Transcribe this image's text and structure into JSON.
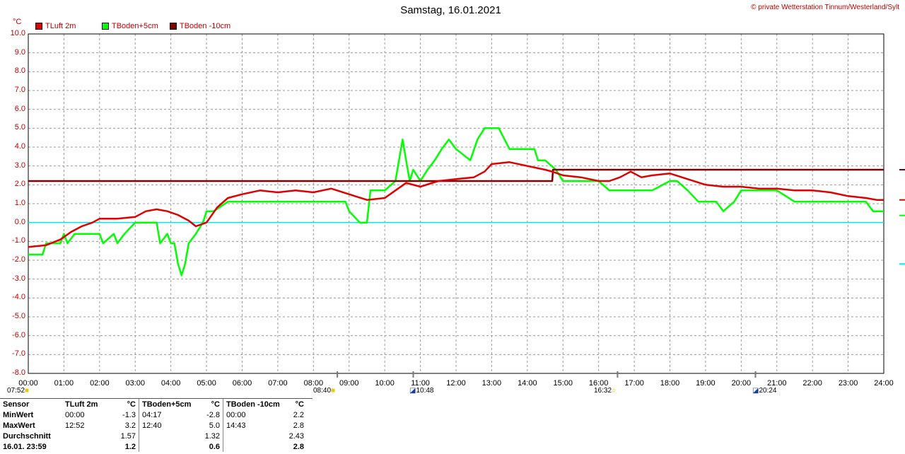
{
  "title": "Samstag, 16.01.2021",
  "copyright": "© private Wetterstation Tinnum/Westerland/Sylt",
  "unit": "°C",
  "legend": [
    {
      "label": "TLuft 2m",
      "color": "#e00000"
    },
    {
      "label": "TBoden+5cm",
      "color": "#00ff00"
    },
    {
      "label": "TBoden -10cm",
      "color": "#800000"
    }
  ],
  "events": [
    {
      "time": "07:52",
      "kind": "sunrise"
    },
    {
      "time": "08:40",
      "kind": "sun"
    },
    {
      "time": "10:48",
      "kind": "moon"
    },
    {
      "time": "16:32",
      "kind": "sunset"
    },
    {
      "time": "20:24",
      "kind": "moon"
    }
  ],
  "chart_data": {
    "type": "line",
    "ylim": [
      -8,
      10
    ],
    "xlim": [
      0,
      24
    ],
    "yticks": [
      "10.0",
      "9.0",
      "8.0",
      "7.0",
      "6.0",
      "5.0",
      "4.0",
      "3.0",
      "2.0",
      "1.0",
      "0.0",
      "-1.0",
      "-2.0",
      "-3.0",
      "-4.0",
      "-5.0",
      "-6.0",
      "-7.0",
      "-8.0"
    ],
    "xticks": [
      "00:00",
      "01:00",
      "02:00",
      "03:00",
      "04:00",
      "05:00",
      "06:00",
      "07:00",
      "08:00",
      "09:00",
      "10:00",
      "11:00",
      "12:00",
      "13:00",
      "14:00",
      "15:00",
      "16:00",
      "17:00",
      "18:00",
      "19:00",
      "20:00",
      "21:00",
      "22:00",
      "23:00",
      "24:00"
    ],
    "grid": true,
    "zero_line_color": "#00e5ee",
    "series": [
      {
        "name": "TLuft 2m",
        "color": "#e00000",
        "x": [
          0,
          0.5,
          0.9,
          1.2,
          1.5,
          1.8,
          2.0,
          2.5,
          3.0,
          3.3,
          3.6,
          3.9,
          4.2,
          4.5,
          4.7,
          5.0,
          5.3,
          5.6,
          6.0,
          6.5,
          7.0,
          7.5,
          8.0,
          8.5,
          9.0,
          9.5,
          10.0,
          10.3,
          10.6,
          11.0,
          11.5,
          12.0,
          12.5,
          12.8,
          13.0,
          13.5,
          14.0,
          14.5,
          14.7,
          15.0,
          15.5,
          16.0,
          16.3,
          16.6,
          16.9,
          17.2,
          17.5,
          18.0,
          18.5,
          19.0,
          19.5,
          20.0,
          20.5,
          21.0,
          21.5,
          22.0,
          22.5,
          23.0,
          23.5,
          23.8,
          24.0
        ],
        "y": [
          -1.3,
          -1.2,
          -0.9,
          -0.5,
          -0.2,
          0.0,
          0.2,
          0.2,
          0.3,
          0.6,
          0.7,
          0.6,
          0.4,
          0.1,
          -0.2,
          0.0,
          0.8,
          1.3,
          1.5,
          1.7,
          1.6,
          1.7,
          1.6,
          1.8,
          1.5,
          1.2,
          1.3,
          1.7,
          2.1,
          1.9,
          2.2,
          2.3,
          2.4,
          2.7,
          3.1,
          3.2,
          3.0,
          2.8,
          2.7,
          2.5,
          2.4,
          2.2,
          2.2,
          2.4,
          2.7,
          2.4,
          2.5,
          2.6,
          2.3,
          2.0,
          1.9,
          1.9,
          1.8,
          1.8,
          1.7,
          1.7,
          1.6,
          1.4,
          1.3,
          1.2,
          1.2
        ]
      },
      {
        "name": "TBoden+5cm",
        "color": "#00ff00",
        "x": [
          0,
          0.4,
          0.5,
          0.9,
          1.0,
          1.1,
          1.3,
          2.0,
          2.1,
          2.4,
          2.5,
          2.7,
          3.0,
          3.6,
          3.7,
          3.9,
          4.0,
          4.1,
          4.2,
          4.3,
          4.4,
          4.5,
          4.7,
          4.9,
          5.0,
          5.2,
          5.6,
          6.0,
          6.3,
          6.8,
          7.5,
          8.0,
          8.5,
          8.9,
          9.0,
          9.3,
          9.5,
          9.6,
          10.0,
          10.3,
          10.4,
          10.5,
          10.6,
          10.7,
          10.8,
          11.0,
          11.2,
          11.4,
          11.6,
          11.8,
          12.0,
          12.4,
          12.6,
          12.8,
          13.0,
          13.2,
          13.5,
          14.0,
          14.2,
          14.3,
          14.5,
          14.8,
          15.0,
          15.5,
          16.0,
          16.3,
          16.5,
          16.8,
          17.0,
          17.5,
          18.0,
          18.2,
          18.5,
          18.8,
          19.0,
          19.3,
          19.5,
          19.8,
          20.0,
          20.5,
          21.0,
          21.5,
          22.0,
          22.5,
          23.0,
          23.5,
          23.7,
          24.0
        ],
        "y": [
          -1.7,
          -1.7,
          -1.1,
          -1.1,
          -0.6,
          -1.1,
          -0.6,
          -0.6,
          -1.1,
          -0.6,
          -1.1,
          -0.6,
          0.0,
          0.0,
          -1.1,
          -0.6,
          -1.1,
          -1.1,
          -2.2,
          -2.8,
          -2.2,
          -1.1,
          -0.6,
          0.0,
          0.6,
          0.6,
          1.1,
          1.1,
          1.1,
          1.1,
          1.1,
          1.1,
          1.1,
          1.1,
          0.6,
          0.0,
          0.0,
          1.7,
          1.7,
          2.2,
          3.3,
          4.4,
          3.3,
          2.2,
          2.8,
          2.2,
          2.8,
          3.3,
          3.9,
          4.4,
          3.9,
          3.3,
          4.4,
          5.0,
          5.0,
          5.0,
          3.9,
          3.9,
          3.9,
          3.3,
          3.3,
          2.8,
          2.2,
          2.2,
          2.2,
          1.7,
          1.7,
          1.7,
          1.7,
          1.7,
          2.2,
          2.2,
          1.7,
          1.1,
          1.1,
          1.1,
          0.6,
          1.1,
          1.7,
          1.7,
          1.7,
          1.1,
          1.1,
          1.1,
          1.1,
          1.1,
          0.6,
          0.6
        ]
      },
      {
        "name": "TBoden -10cm",
        "color": "#800000",
        "x": [
          0,
          14.7,
          14.72,
          24.0
        ],
        "y": [
          2.2,
          2.2,
          2.8,
          2.8
        ]
      }
    ]
  },
  "stats": {
    "header": [
      "Sensor",
      "TLuft 2m",
      "°C",
      "TBoden+5cm",
      "°C",
      "TBoden -10cm",
      "°C"
    ],
    "rows": [
      [
        "MinWert",
        "00:00",
        "-1.3",
        "04:17",
        "-2.8",
        "00:00",
        "2.2"
      ],
      [
        "MaxWert",
        "12:52",
        "3.2",
        "12:40",
        "5.0",
        "14:43",
        "2.8"
      ],
      [
        "Durchschnitt",
        "",
        "1.57",
        "",
        "1.32",
        "",
        "2.43"
      ],
      [
        "16.01. 23:59",
        "",
        "1.2",
        "",
        "0.6",
        "",
        "2.8"
      ]
    ]
  }
}
